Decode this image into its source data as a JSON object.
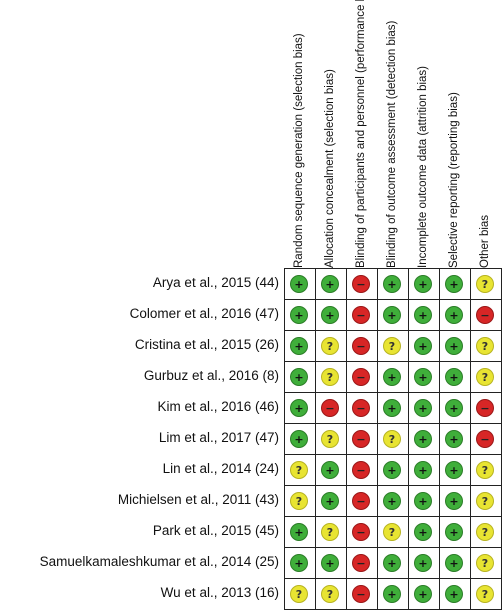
{
  "domains": [
    "Random sequence generation (selection bias)",
    "Allocation concealment (selection bias)",
    "Blinding of participants and personnel (performance bias)",
    "Blinding of outcome assessment (detection bias)",
    "Incomplete outcome data (attrition bias)",
    "Selective reporting (reporting bias)",
    "Other bias"
  ],
  "studies": [
    {
      "label": "Arya et al., 2015 (44)",
      "judgements": [
        "low",
        "low",
        "high",
        "low",
        "low",
        "low",
        "unclear"
      ]
    },
    {
      "label": "Colomer et al., 2016 (47)",
      "judgements": [
        "low",
        "low",
        "high",
        "low",
        "low",
        "low",
        "high"
      ]
    },
    {
      "label": "Cristina et al., 2015 (26)",
      "judgements": [
        "low",
        "unclear",
        "high",
        "unclear",
        "low",
        "low",
        "unclear"
      ]
    },
    {
      "label": "Gurbuz et al., 2016 (8)",
      "judgements": [
        "low",
        "unclear",
        "high",
        "low",
        "low",
        "low",
        "unclear"
      ]
    },
    {
      "label": "Kim et al., 2016 (46)",
      "judgements": [
        "low",
        "high",
        "high",
        "low",
        "low",
        "low",
        "high"
      ]
    },
    {
      "label": "Lim et al., 2017 (47)",
      "judgements": [
        "low",
        "unclear",
        "high",
        "unclear",
        "low",
        "low",
        "high"
      ]
    },
    {
      "label": "Lin et al., 2014 (24)",
      "judgements": [
        "unclear",
        "low",
        "high",
        "low",
        "low",
        "low",
        "unclear"
      ]
    },
    {
      "label": "Michielsen et al., 2011 (43)",
      "judgements": [
        "unclear",
        "low",
        "high",
        "low",
        "low",
        "low",
        "unclear"
      ]
    },
    {
      "label": "Park et al., 2015 (45)",
      "judgements": [
        "low",
        "unclear",
        "high",
        "unclear",
        "low",
        "low",
        "unclear"
      ]
    },
    {
      "label": "Samuelkamaleshkumar et al., 2014 (25)",
      "judgements": [
        "low",
        "low",
        "high",
        "low",
        "low",
        "low",
        "unclear"
      ]
    },
    {
      "label": "Wu et al., 2013 (16)",
      "judgements": [
        "unclear",
        "unclear",
        "high",
        "low",
        "low",
        "low",
        "unclear"
      ]
    }
  ],
  "symbols": {
    "low": "+",
    "unclear": "?",
    "high": "−"
  },
  "colors": {
    "low": "#3fae3a",
    "unclear": "#e8e432",
    "high": "#d72626",
    "grid": "#222222"
  }
}
